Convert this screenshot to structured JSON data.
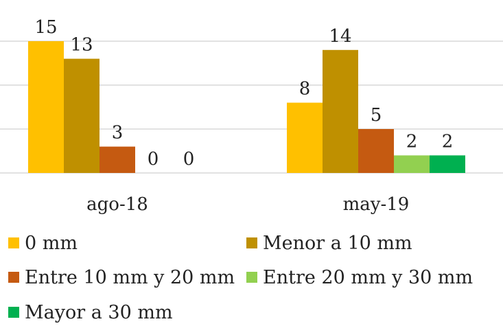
{
  "chart_data": {
    "type": "bar",
    "categories": [
      "ago-18",
      "may-19"
    ],
    "series": [
      {
        "name": "0 mm",
        "values": [
          15,
          8
        ],
        "color": "#FFC000"
      },
      {
        "name": "Menor a 10 mm",
        "values": [
          13,
          14
        ],
        "color": "#BF9000"
      },
      {
        "name": "Entre 10 mm y 20 mm",
        "values": [
          3,
          5
        ],
        "color": "#C55A11"
      },
      {
        "name": "Entre 20 mm y 30 mm",
        "values": [
          0,
          2
        ],
        "color": "#92D050"
      },
      {
        "name": "Mayor a 30 mm",
        "values": [
          0,
          2
        ],
        "color": "#00B050"
      }
    ],
    "ylim": [
      0,
      15
    ],
    "grid": true,
    "legend_position": "bottom",
    "data_labels": true
  }
}
